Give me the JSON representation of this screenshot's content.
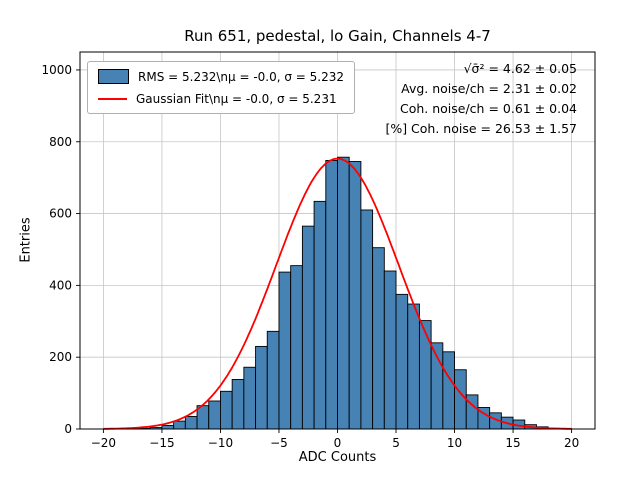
{
  "chart_data": {
    "type": "bar",
    "subtype": "histogram",
    "title": "Run 651, pedestal, lo Gain, Channels 4-7",
    "xlabel": "ADC Counts",
    "ylabel": "Entries",
    "xlim": [
      -22,
      22
    ],
    "ylim": [
      0,
      1050
    ],
    "xticks": [
      -20,
      -15,
      -10,
      -5,
      0,
      5,
      10,
      15,
      20
    ],
    "yticks": [
      0,
      200,
      400,
      600,
      800,
      1000
    ],
    "grid": true,
    "bar_color": "#4682b4",
    "bar_edge_color": "#000000",
    "bin_edges": [
      -20,
      -19,
      -18,
      -17,
      -16,
      -15,
      -14,
      -13,
      -12,
      -11,
      -10,
      -9,
      -8,
      -7,
      -6,
      -5,
      -4,
      -3,
      -2,
      -1,
      0,
      1,
      2,
      3,
      4,
      5,
      6,
      7,
      8,
      9,
      10,
      11,
      12,
      13,
      14,
      15,
      16,
      17,
      18,
      19,
      20
    ],
    "counts": [
      0,
      0,
      0,
      2,
      4,
      10,
      22,
      35,
      65,
      78,
      105,
      138,
      172,
      230,
      272,
      437,
      455,
      565,
      634,
      748,
      757,
      745,
      610,
      505,
      440,
      375,
      348,
      302,
      240,
      215,
      165,
      95,
      60,
      45,
      33,
      25,
      12,
      6,
      2,
      1
    ],
    "fit": {
      "shape": "gaussian",
      "amplitude": 753,
      "mu": -0.0,
      "sigma": 5.231,
      "color": "#ff0000"
    },
    "legend": {
      "position": "upper left",
      "hist_label": "RMS = 5.232\\nμ = -0.0, σ = 5.232",
      "fit_label": "Gaussian Fit\\nμ = -0.0, σ = 5.231"
    },
    "annotations": [
      "√σ̄² = 4.62 ± 0.05",
      "Avg. noise/ch = 2.31 ± 0.02",
      "Coh. noise/ch = 0.61 ± 0.04",
      "[%] Coh. noise = 26.53 ± 1.57"
    ]
  }
}
